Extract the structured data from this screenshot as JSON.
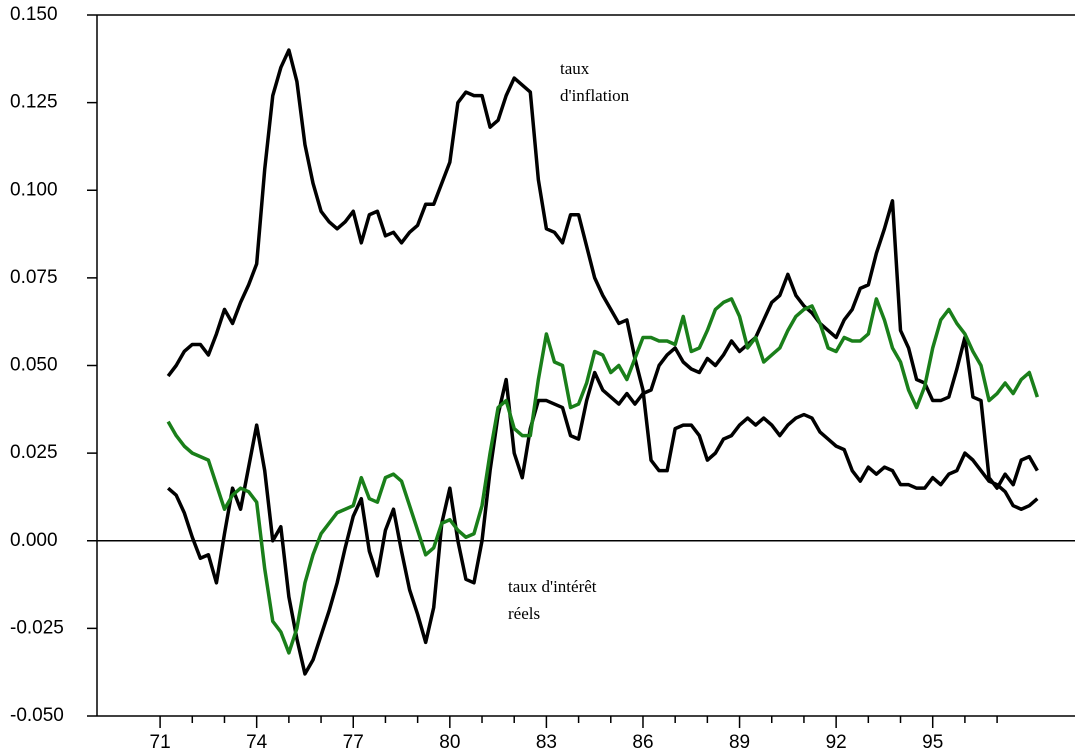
{
  "chart_data": {
    "type": "line",
    "x": [
      71.25,
      71.5,
      71.75,
      72,
      72.25,
      72.5,
      72.75,
      73,
      73.25,
      73.5,
      73.75,
      74,
      74.25,
      74.5,
      74.75,
      75,
      75.25,
      75.5,
      75.75,
      76,
      76.25,
      76.5,
      76.75,
      77,
      77.25,
      77.5,
      77.75,
      78,
      78.25,
      78.5,
      78.75,
      79,
      79.25,
      79.5,
      79.75,
      80,
      80.25,
      80.5,
      80.75,
      81,
      81.25,
      81.5,
      81.75,
      82,
      82.25,
      82.5,
      82.75,
      83,
      83.25,
      83.5,
      83.75,
      84,
      84.25,
      84.5,
      84.75,
      85,
      85.25,
      85.5,
      85.75,
      86,
      86.25,
      86.5,
      86.75,
      87,
      87.25,
      87.5,
      87.75,
      88,
      88.25,
      88.5,
      88.75,
      89,
      89.25,
      89.5,
      89.75,
      90,
      90.25,
      90.5,
      90.75,
      91,
      91.25,
      91.5,
      91.75,
      92,
      92.25,
      92.5,
      92.75,
      93,
      93.25,
      93.5,
      93.75,
      94,
      94.25,
      94.5,
      94.75,
      95,
      95.25,
      95.5,
      95.75,
      96,
      96.25,
      96.5,
      96.75,
      97,
      97.25,
      97.5,
      97.75,
      98,
      98.25
    ],
    "series": [
      {
        "color": "#000000",
        "values": [
          0.047,
          0.05,
          0.054,
          0.056,
          0.056,
          0.053,
          0.059,
          0.066,
          0.062,
          0.068,
          0.073,
          0.079,
          0.106,
          0.127,
          0.135,
          0.14,
          0.131,
          0.113,
          0.102,
          0.094,
          0.091,
          0.089,
          0.091,
          0.094,
          0.085,
          0.093,
          0.094,
          0.087,
          0.088,
          0.085,
          0.088,
          0.09,
          0.096,
          0.096,
          0.102,
          0.108,
          0.125,
          0.128,
          0.127,
          0.127,
          0.118,
          0.12,
          0.127,
          0.132,
          0.13,
          0.128,
          0.103,
          0.089,
          0.088,
          0.085,
          0.093,
          0.093,
          0.084,
          0.075,
          0.07,
          0.066,
          0.062,
          0.063,
          0.052,
          0.043,
          0.023,
          0.02,
          0.02,
          0.032,
          0.033,
          0.033,
          0.03,
          0.023,
          0.025,
          0.029,
          0.03,
          0.033,
          0.035,
          0.033,
          0.035,
          0.033,
          0.03,
          0.033,
          0.035,
          0.036,
          0.035,
          0.031,
          0.029,
          0.027,
          0.026,
          0.02,
          0.017,
          0.021,
          0.019,
          0.021,
          0.02,
          0.016,
          0.016,
          0.015,
          0.015,
          0.018,
          0.016,
          0.019,
          0.02,
          0.025,
          0.023,
          0.02,
          0.017,
          0.016,
          0.014,
          0.01,
          0.009,
          0.01,
          0.012
        ]
      },
      {
        "color": "#000000",
        "values": [
          0.015,
          0.013,
          0.008,
          0.001,
          -0.005,
          -0.004,
          -0.012,
          0.002,
          0.015,
          0.009,
          0.021,
          0.033,
          0.02,
          0.0,
          0.004,
          -0.016,
          -0.028,
          -0.038,
          -0.034,
          -0.027,
          -0.02,
          -0.012,
          -0.002,
          0.007,
          0.012,
          -0.003,
          -0.01,
          0.003,
          0.009,
          -0.003,
          -0.014,
          -0.021,
          -0.029,
          -0.019,
          0.005,
          0.015,
          0.0,
          -0.011,
          -0.012,
          0.0,
          0.02,
          0.036,
          0.046,
          0.025,
          0.018,
          0.032,
          0.04,
          0.04,
          0.039,
          0.038,
          0.03,
          0.029,
          0.04,
          0.048,
          0.043,
          0.041,
          0.039,
          0.042,
          0.039,
          0.042,
          0.043,
          0.05,
          0.053,
          0.055,
          0.051,
          0.049,
          0.048,
          0.052,
          0.05,
          0.053,
          0.057,
          0.054,
          0.056,
          0.058,
          0.063,
          0.068,
          0.07,
          0.076,
          0.07,
          0.067,
          0.065,
          0.062,
          0.06,
          0.058,
          0.063,
          0.066,
          0.072,
          0.073,
          0.082,
          0.089,
          0.097,
          0.06,
          0.055,
          0.046,
          0.045,
          0.04,
          0.04,
          0.041,
          0.049,
          0.058,
          0.041,
          0.04,
          0.018,
          0.015,
          0.019,
          0.016,
          0.023,
          0.024,
          0.02
        ]
      },
      {
        "color": "#1a7f1a",
        "values": [
          0.034,
          0.03,
          0.027,
          0.025,
          0.024,
          0.023,
          0.016,
          0.009,
          0.013,
          0.015,
          0.014,
          0.011,
          -0.008,
          -0.023,
          -0.026,
          -0.032,
          -0.025,
          -0.012,
          -0.004,
          0.002,
          0.005,
          0.008,
          0.009,
          0.01,
          0.018,
          0.012,
          0.011,
          0.018,
          0.019,
          0.017,
          0.01,
          0.003,
          -0.004,
          -0.002,
          0.005,
          0.006,
          0.003,
          0.001,
          0.002,
          0.01,
          0.025,
          0.038,
          0.04,
          0.032,
          0.03,
          0.03,
          0.046,
          0.059,
          0.051,
          0.05,
          0.038,
          0.039,
          0.045,
          0.054,
          0.053,
          0.048,
          0.05,
          0.046,
          0.052,
          0.058,
          0.058,
          0.057,
          0.057,
          0.056,
          0.064,
          0.054,
          0.055,
          0.06,
          0.066,
          0.068,
          0.069,
          0.064,
          0.055,
          0.058,
          0.051,
          0.053,
          0.055,
          0.06,
          0.064,
          0.066,
          0.067,
          0.062,
          0.055,
          0.054,
          0.058,
          0.057,
          0.057,
          0.059,
          0.069,
          0.063,
          0.055,
          0.051,
          0.043,
          0.038,
          0.044,
          0.055,
          0.063,
          0.066,
          0.062,
          0.059,
          0.054,
          0.05,
          0.04,
          0.042,
          0.045,
          0.042,
          0.046,
          0.048,
          0.041
        ]
      }
    ],
    "annotations": [
      {
        "lines": [
          "taux",
          "d'inflation"
        ]
      },
      {
        "lines": [
          "taux d'intérêt",
          "réels"
        ]
      }
    ],
    "xlim": [
      69.04,
      99.42
    ],
    "xticks": [
      71,
      74,
      77,
      80,
      83,
      86,
      89,
      92,
      95
    ],
    "xminorticks": [
      72,
      73,
      75,
      76,
      78,
      79,
      81,
      82,
      84,
      85,
      87,
      88,
      90,
      91,
      93,
      94,
      96,
      97
    ],
    "ylim": [
      -0.05,
      0.15
    ],
    "yticks": [
      {
        "value": -0.05,
        "label": "-0.050"
      },
      -0.025,
      {
        "value": 0,
        "label": "0.000"
      },
      0.025,
      {
        "value": 0.05,
        "label": "0.050"
      },
      0.075,
      {
        "value": 0.1,
        "label": "0.100"
      },
      0.125,
      {
        "value": 0.15,
        "label": "0.150"
      }
    ],
    "zero_line": true
  }
}
